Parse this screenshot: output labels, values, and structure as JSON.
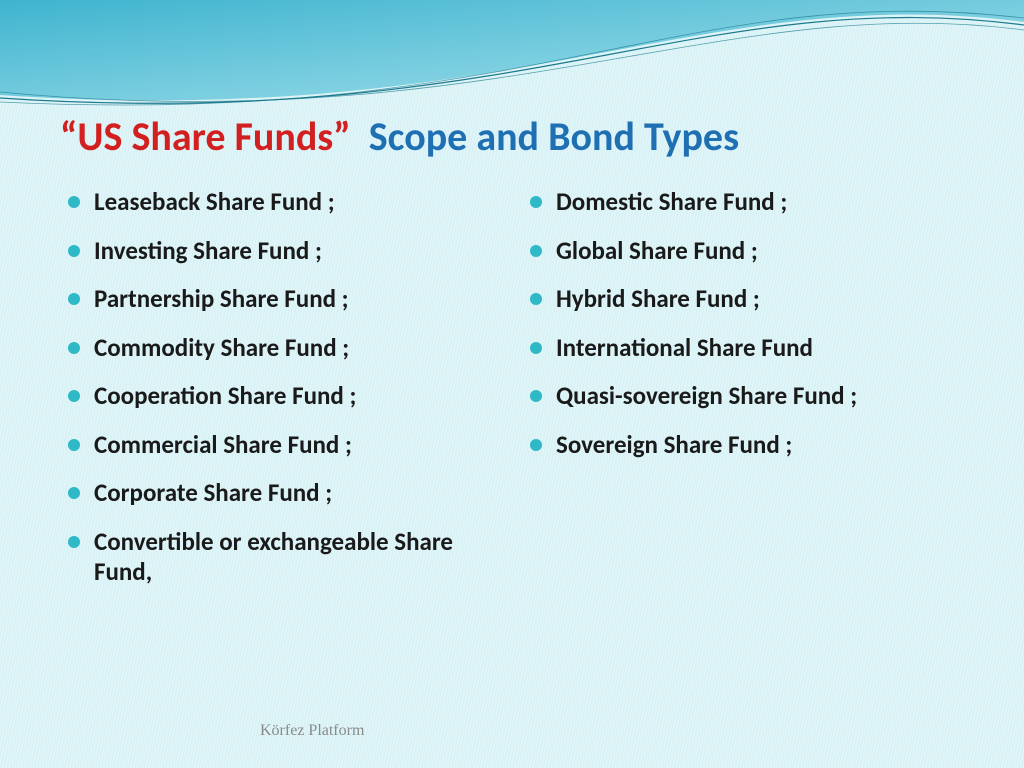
{
  "slide": {
    "title_part1": "“US Share Funds”",
    "title_part2": "Scope and Bond Types",
    "title_color1": "#d21f1f",
    "title_color2": "#1f6fb3",
    "title_fontsize": 40,
    "bullet_color": "#2fb8c5",
    "bullet_fontsize": 25,
    "background_color": "#dff5f8",
    "hatch_color": "#d5f0f4",
    "swoosh_gradient_from": "#3fb4cf",
    "swoosh_gradient_to": "#a8e2ec",
    "swoosh_line_color": "#1c7a8e"
  },
  "left_column": [
    "Leaseback Share Fund ;",
    "Investing Share Fund ;",
    "Partnership  Share Fund ;",
    "Commodity Share Fund ;",
    "Cooperation Share Fund ;",
    "Commercial Share Fund ;",
    "Corporate Share Fund ;",
    "Convertible or exchangeable Share Fund,"
  ],
  "right_column": [
    "Domestic Share Fund  ;",
    "Global Share Fund  ;",
    "Hybrid Share Fund ;",
    "International Share Fund",
    "Quasi-sovereign Share Fund  ;",
    "Sovereign Share Fund ;"
  ],
  "footer": "Körfez Platform"
}
